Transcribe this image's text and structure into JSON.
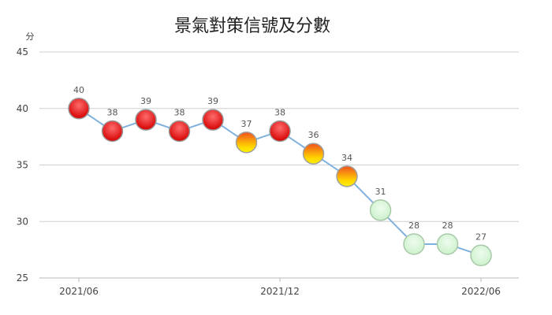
{
  "chart_data": {
    "type": "line",
    "title": "景氣對策信號及分數",
    "y_unit": "分",
    "xlabel": "",
    "ylabel": "",
    "ylim": [
      25,
      45
    ],
    "y_ticks": [
      25,
      30,
      35,
      40,
      45
    ],
    "grid": true,
    "x": [
      "2021/06",
      "2021/07",
      "2021/08",
      "2021/09",
      "2021/10",
      "2021/11",
      "2021/12",
      "2022/01",
      "2022/02",
      "2022/03",
      "2022/04",
      "2022/05",
      "2022/06"
    ],
    "x_tick_labels": [
      "2021/06",
      "2021/12",
      "2022/06"
    ],
    "x_tick_indices": [
      0,
      6,
      12
    ],
    "series": [
      {
        "values": [
          40,
          38,
          39,
          38,
          39,
          37,
          38,
          36,
          34,
          31,
          28,
          28,
          27
        ],
        "signal_colors": [
          "red",
          "red",
          "red",
          "red",
          "red",
          "yellow-red",
          "red",
          "yellow-red",
          "yellow-red",
          "green",
          "green",
          "green",
          "green"
        ]
      }
    ],
    "colors": {
      "line": "#7fb1de",
      "red_top": "#ff5a5a",
      "red_bottom": "#d40000",
      "yellow_red_top": "#f05a1e",
      "yellow_red_bottom": "#ffee00",
      "green_fill": "#d9f7d9",
      "green_stroke": "#a8c8a8",
      "grid": "#cfcfcf"
    }
  }
}
